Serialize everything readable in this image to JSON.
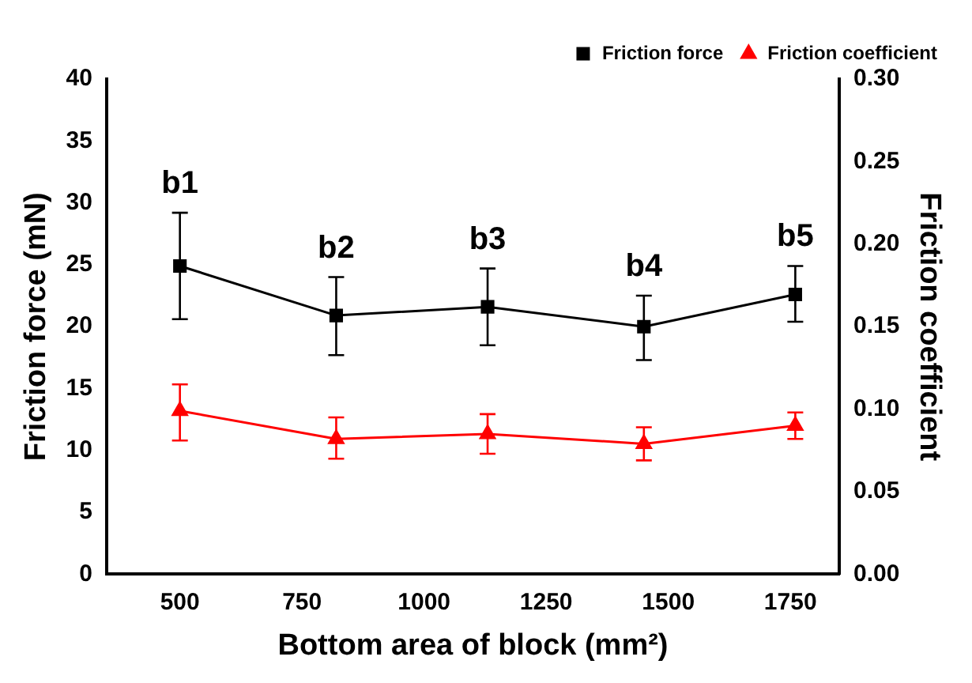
{
  "chart_data": {
    "type": "line",
    "xlabel": "Bottom area of block (mm²)",
    "ylabel": "Friction force (mN)",
    "y2label": "Friction coefficient",
    "x": [
      500,
      820,
      1130,
      1450,
      1760
    ],
    "series": [
      {
        "name": "Friction force",
        "color": "#000000",
        "marker": "square",
        "values": [
          24.9,
          20.9,
          21.6,
          20.0,
          22.6
        ],
        "errors": [
          [
            20.6,
            29.2
          ],
          [
            17.7,
            24.0
          ],
          [
            18.5,
            24.7
          ],
          [
            17.3,
            22.5
          ],
          [
            20.4,
            24.9
          ]
        ]
      },
      {
        "name": "Friction coefficient",
        "color": "#ff0000",
        "marker": "triangle",
        "axis": "y2",
        "values": [
          0.099,
          0.082,
          0.085,
          0.079,
          0.09
        ],
        "errors": [
          [
            0.081,
            0.115
          ],
          [
            0.07,
            0.095
          ],
          [
            0.073,
            0.097
          ],
          [
            0.069,
            0.089
          ],
          [
            0.082,
            0.098
          ]
        ]
      }
    ],
    "xlim": [
      350,
      1850
    ],
    "xticks": [
      500,
      750,
      1000,
      1250,
      1500,
      1750
    ],
    "ylim": [
      0,
      40
    ],
    "yticks": [
      0,
      5,
      10,
      15,
      20,
      25,
      30,
      35,
      40
    ],
    "y2lim": [
      0,
      0.3
    ],
    "y2ticks": [
      {
        "value": 0,
        "label": "0.00"
      },
      {
        "value": 0.05,
        "label": "0.05"
      },
      {
        "value": 0.1,
        "label": "0.10"
      },
      {
        "value": 0.15,
        "label": "0.15"
      },
      {
        "value": 0.2,
        "label": "0.20"
      },
      {
        "value": 0.25,
        "label": "0.25"
      },
      {
        "value": 0.3,
        "label": "0.30"
      }
    ],
    "annotations": [
      "b1",
      "b2",
      "b3",
      "b4",
      "b5"
    ],
    "legend": "top right",
    "grid": false,
    "line_style": "solid"
  }
}
